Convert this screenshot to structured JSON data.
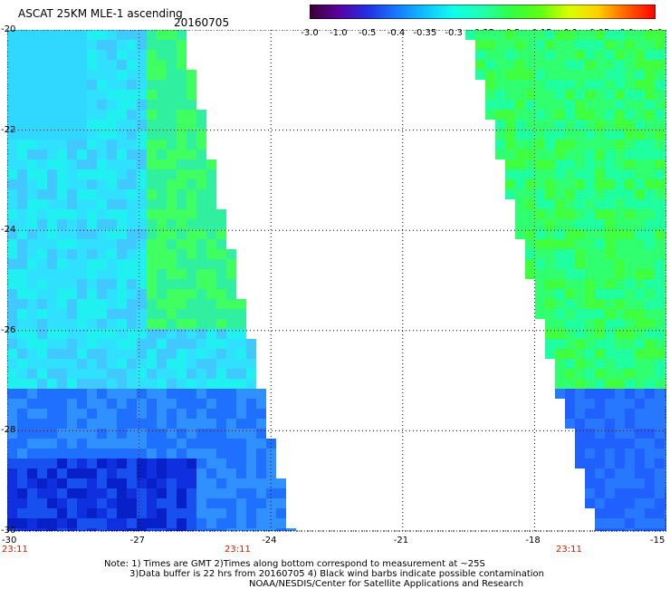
{
  "header": {
    "title": "ASCAT 25KM MLE-1 ascending",
    "date": "20160705"
  },
  "colorbar": {
    "labels": [
      "-3.0",
      "-1.0",
      "-0.5",
      "-0.4",
      "-0.35",
      "-0.3",
      "-0.25",
      "-0.2",
      "-0.15",
      "-0.1",
      "-0.05",
      "0.0",
      "1.0"
    ],
    "colors": [
      "#3a0030",
      "#5a00a0",
      "#2030e0",
      "#1878ff",
      "#10c0ff",
      "#10ffe8",
      "#20ffb0",
      "#30ff40",
      "#60ff10",
      "#d8ff00",
      "#ffd000",
      "#ff6000",
      "#ff0000"
    ]
  },
  "axes": {
    "x_ticks": [
      "-30",
      "-27",
      "-24",
      "-21",
      "-18",
      "-15"
    ],
    "y_ticks": [
      "-20",
      "-22",
      "-24",
      "-26",
      "-28",
      "-30"
    ],
    "x_range": [
      -30,
      -15
    ],
    "y_range": [
      -30,
      -20
    ]
  },
  "times": [
    "23:11",
    "23:11",
    "23:11"
  ],
  "notes": {
    "line1": "Note: 1) Times are GMT 2)Times along bottom correspond to measurement at ~25S",
    "line2": "3)Data buffer is 22 hrs from 20160705 4) Black wind barbs indicate possible contamination",
    "line3": "NOAA/NESDIS/Center for Satellite Applications and Research"
  }
}
